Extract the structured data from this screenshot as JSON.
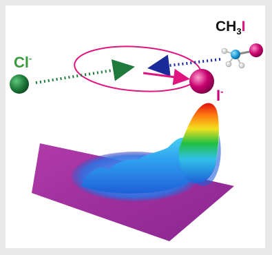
{
  "labels": {
    "chloride": "Cl",
    "chloride_charge": "-",
    "iodide": "I",
    "iodide_charge": "-",
    "methyl_prefix": "CH",
    "methyl_subscript": "3",
    "methyl_halogen": "I"
  },
  "colors": {
    "frame_bg": "#e9e9ea",
    "panel_bg": "#ffffff",
    "chloride_label": "#3a9b3e",
    "chloride_sphere": "#1f7a3b",
    "chloride_arrow": "#1f7a3b",
    "iodide_label": "#d0007a",
    "iodide_sphere": "#c8006e",
    "ellipse": "#e0147f",
    "reactant_arrow": "#1a2a99",
    "product_arrow": "#e0147f",
    "carbon_atom": "#1a9ad6",
    "hydrogen_atom": "#ffffff",
    "surface_base": "#9a2a9a"
  }
}
